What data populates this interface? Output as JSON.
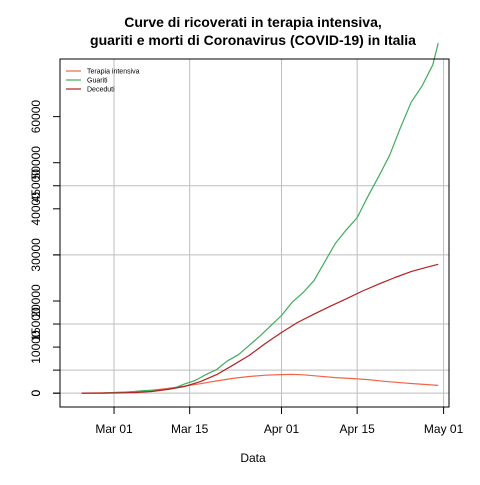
{
  "chart_data": {
    "type": "line",
    "title_lines": [
      "Curve di ricoverati in terapia intensiva,",
      "guariti e morti di Coronavirus (COVID-19) in Italia"
    ],
    "xlabel": "Data",
    "ylabel": "",
    "grid": true,
    "legend_position": "top-left",
    "x_axis": {
      "type": "date",
      "ticks": [
        {
          "value": "2020-03-01",
          "label": "Mar 01"
        },
        {
          "value": "2020-03-15",
          "label": "Mar 15"
        },
        {
          "value": "2020-04-01",
          "label": "Apr 01"
        },
        {
          "value": "2020-04-15",
          "label": "Apr 15"
        },
        {
          "value": "2020-05-01",
          "label": "May 01"
        }
      ],
      "range": [
        "2020-02-20",
        "2020-05-02"
      ]
    },
    "y_axis_left": {
      "ticks": [
        {
          "value": 0,
          "label": "0"
        },
        {
          "value": 10000,
          "label": "10000"
        },
        {
          "value": 20000,
          "label": "20000"
        },
        {
          "value": 30000,
          "label": "30000"
        },
        {
          "value": 40000,
          "label": "40000"
        },
        {
          "value": 50000,
          "label": "50000"
        },
        {
          "value": 60000,
          "label": "60000"
        }
      ],
      "range": [
        -3000,
        72500
      ]
    },
    "y_axis_overlay": {
      "ticks": [
        {
          "value": 0,
          "label": "0"
        },
        {
          "value": 5000,
          "label": ""
        },
        {
          "value": 15000,
          "label": "15000"
        },
        {
          "value": 30000,
          "label": ""
        },
        {
          "value": 45000,
          "label": "45000"
        }
      ],
      "range": [
        -3000,
        72500
      ]
    },
    "colors": {
      "terapia": "#ef6548",
      "guariti": "#41ab5d",
      "deceduti": "#b22222",
      "grid": "#bebebe",
      "axis": "#000000"
    },
    "series": [
      {
        "name": "Terapia intensiva",
        "color": "#ef6548",
        "points": [
          [
            "2020-02-24",
            26
          ],
          [
            "2020-02-28",
            64
          ],
          [
            "2020-03-02",
            166
          ],
          [
            "2020-03-05",
            351
          ],
          [
            "2020-03-08",
            650
          ],
          [
            "2020-03-11",
            1028
          ],
          [
            "2020-03-14",
            1518
          ],
          [
            "2020-03-17",
            2060
          ],
          [
            "2020-03-20",
            2655
          ],
          [
            "2020-03-23",
            3204
          ],
          [
            "2020-03-26",
            3612
          ],
          [
            "2020-03-29",
            3906
          ],
          [
            "2020-04-01",
            4035
          ],
          [
            "2020-04-03",
            4068
          ],
          [
            "2020-04-05",
            3977
          ],
          [
            "2020-04-08",
            3693
          ],
          [
            "2020-04-11",
            3381
          ],
          [
            "2020-04-14",
            3186
          ],
          [
            "2020-04-17",
            2936
          ],
          [
            "2020-04-20",
            2573
          ],
          [
            "2020-04-23",
            2267
          ],
          [
            "2020-04-26",
            2009
          ],
          [
            "2020-04-30",
            1694
          ]
        ]
      },
      {
        "name": "Guariti",
        "color": "#41ab5d",
        "points": [
          [
            "2020-02-24",
            1
          ],
          [
            "2020-02-28",
            46
          ],
          [
            "2020-03-02",
            160
          ],
          [
            "2020-03-04",
            276
          ],
          [
            "2020-03-06",
            523
          ],
          [
            "2020-03-08",
            622
          ],
          [
            "2020-03-10",
            724
          ],
          [
            "2020-03-12",
            1045
          ],
          [
            "2020-03-14",
            1966
          ],
          [
            "2020-03-16",
            2749
          ],
          [
            "2020-03-18",
            4025
          ],
          [
            "2020-03-20",
            5129
          ],
          [
            "2020-03-22",
            7024
          ],
          [
            "2020-03-24",
            8326
          ],
          [
            "2020-03-26",
            10361
          ],
          [
            "2020-03-28",
            12384
          ],
          [
            "2020-03-30",
            14620
          ],
          [
            "2020-04-01",
            16847
          ],
          [
            "2020-04-03",
            19758
          ],
          [
            "2020-04-05",
            21815
          ],
          [
            "2020-04-07",
            24392
          ],
          [
            "2020-04-09",
            28470
          ],
          [
            "2020-04-11",
            32534
          ],
          [
            "2020-04-13",
            35435
          ],
          [
            "2020-04-15",
            38092
          ],
          [
            "2020-04-17",
            42727
          ],
          [
            "2020-04-19",
            47055
          ],
          [
            "2020-04-21",
            51600
          ],
          [
            "2020-04-23",
            57576
          ],
          [
            "2020-04-25",
            63120
          ],
          [
            "2020-04-27",
            66624
          ],
          [
            "2020-04-29",
            71252
          ],
          [
            "2020-04-30",
            75945
          ]
        ]
      },
      {
        "name": "Deceduti",
        "color": "#b22222",
        "points": [
          [
            "2020-02-24",
            7
          ],
          [
            "2020-02-28",
            21
          ],
          [
            "2020-03-02",
            52
          ],
          [
            "2020-03-05",
            148
          ],
          [
            "2020-03-08",
            366
          ],
          [
            "2020-03-11",
            827
          ],
          [
            "2020-03-14",
            1441
          ],
          [
            "2020-03-17",
            2503
          ],
          [
            "2020-03-20",
            4032
          ],
          [
            "2020-03-23",
            6077
          ],
          [
            "2020-03-26",
            8165
          ],
          [
            "2020-03-29",
            10779
          ],
          [
            "2020-04-01",
            13155
          ],
          [
            "2020-04-04",
            15362
          ],
          [
            "2020-04-07",
            17127
          ],
          [
            "2020-04-10",
            18849
          ],
          [
            "2020-04-13",
            20465
          ],
          [
            "2020-04-16",
            22170
          ],
          [
            "2020-04-19",
            23660
          ],
          [
            "2020-04-22",
            25085
          ],
          [
            "2020-04-25",
            26384
          ],
          [
            "2020-04-28",
            27359
          ],
          [
            "2020-04-30",
            27967
          ]
        ]
      }
    ]
  }
}
